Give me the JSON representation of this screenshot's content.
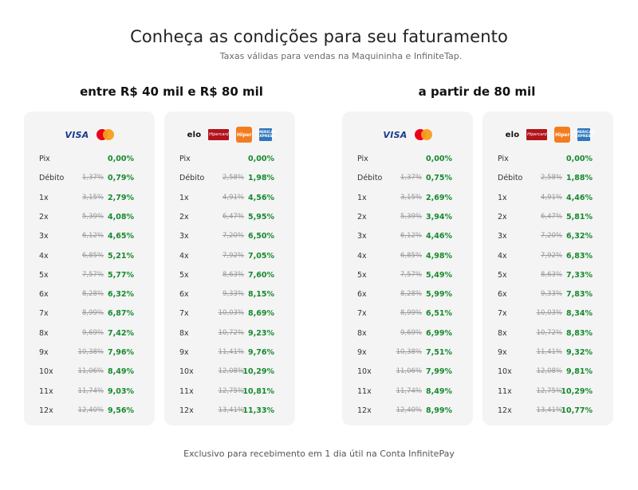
{
  "header": {
    "title": "Conheça as condições para seu faturamento",
    "subtitle": "Taxas válidas para vendas na Maquininha e InfiniteTap."
  },
  "sections": [
    {
      "title": "entre R$ 40 mil e R$ 80 mil"
    },
    {
      "title": "a partir de 80 mil"
    }
  ],
  "brand_logos": {
    "visa": "VISA",
    "elo": "elo",
    "hipercard": "Hipercard",
    "hiper": "Hiper",
    "amex_top": "AMERICAN",
    "amex_bottom": "EXPRESS",
    "colors": {
      "visa": "#1a3a8f",
      "mc_red": "#eb001b",
      "mc_yellow": "#f79e1b",
      "hipercard": "#b3131b",
      "hiper": "#f47c20",
      "amex": "#2e77bb"
    }
  },
  "row_labels": [
    "Pix",
    "Débito",
    "1x",
    "2x",
    "3x",
    "4x",
    "5x",
    "6x",
    "7x",
    "8x",
    "9x",
    "10x",
    "11x",
    "12x"
  ],
  "cards": [
    {
      "brands": "visa-mastercard",
      "old": [
        "",
        "1,37%",
        "3,15%",
        "5,39%",
        "6,12%",
        "6,85%",
        "7,57%",
        "8,28%",
        "8,99%",
        "9,69%",
        "10,38%",
        "11,06%",
        "11,74%",
        "12,40%"
      ],
      "new": [
        "0,00%",
        "0,79%",
        "2,79%",
        "4,08%",
        "4,65%",
        "5,21%",
        "5,77%",
        "6,32%",
        "6,87%",
        "7,42%",
        "7,96%",
        "8,49%",
        "9,03%",
        "9,56%"
      ]
    },
    {
      "brands": "elo-hiper-amex",
      "old": [
        "",
        "2,58%",
        "4,91%",
        "6,47%",
        "7,20%",
        "7,92%",
        "8,63%",
        "9,33%",
        "10,03%",
        "10,72%",
        "11,41%",
        "12,08%",
        "12,75%",
        "13,41%"
      ],
      "new": [
        "0,00%",
        "1,98%",
        "4,56%",
        "5,95%",
        "6,50%",
        "7,05%",
        "7,60%",
        "8,15%",
        "8,69%",
        "9,23%",
        "9,76%",
        "10,29%",
        "10,81%",
        "11,33%"
      ]
    },
    {
      "brands": "visa-mastercard",
      "old": [
        "",
        "1,37%",
        "3,15%",
        "5,39%",
        "6,12%",
        "6,85%",
        "7,57%",
        "8,28%",
        "8,99%",
        "9,69%",
        "10,38%",
        "11,06%",
        "11,74%",
        "12,40%"
      ],
      "new": [
        "0,00%",
        "0,75%",
        "2,69%",
        "3,94%",
        "4,46%",
        "4,98%",
        "5,49%",
        "5,99%",
        "6,51%",
        "6,99%",
        "7,51%",
        "7,99%",
        "8,49%",
        "8,99%"
      ]
    },
    {
      "brands": "elo-hiper-amex",
      "old": [
        "",
        "2,58%",
        "4,91%",
        "6,47%",
        "7,20%",
        "7,92%",
        "8,63%",
        "9,33%",
        "10,03%",
        "10,72%",
        "11,41%",
        "12,08%",
        "12,75%",
        "13,41%"
      ],
      "new": [
        "0,00%",
        "1,88%",
        "4,46%",
        "5,81%",
        "6,32%",
        "6,83%",
        "7,33%",
        "7,83%",
        "8,34%",
        "8,83%",
        "9,32%",
        "9,81%",
        "10,29%",
        "10,77%"
      ]
    }
  ],
  "footer": {
    "text": "Exclusivo para recebimento em 1 dia útil na Conta InfinitePay"
  },
  "colors": {
    "new_rate": "#168a2c",
    "old_rate": "#9a9a9a",
    "card_bg": "#f4f4f5"
  }
}
